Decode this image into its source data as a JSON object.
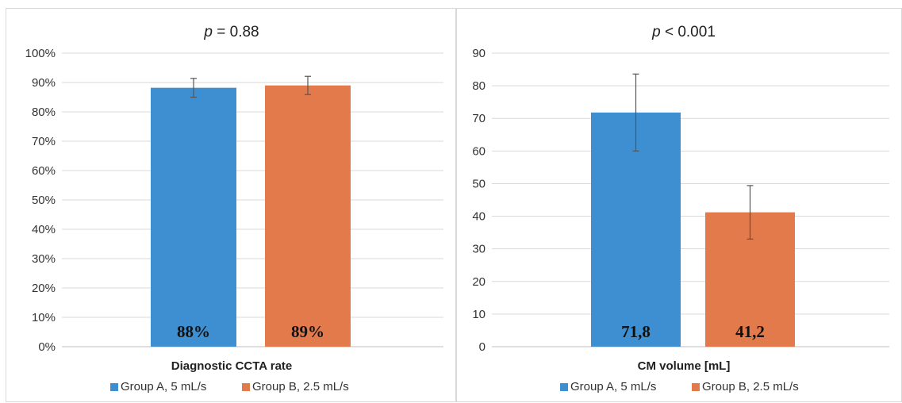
{
  "chart_data": [
    {
      "type": "bar",
      "title_prefix": "p",
      "title_suffix": " = 0.88",
      "xlabel": "Diagnostic CCTA rate",
      "ylim": [
        0,
        100
      ],
      "yticks": [
        "0%",
        "10%",
        "20%",
        "30%",
        "40%",
        "50%",
        "60%",
        "70%",
        "80%",
        "90%",
        "100%"
      ],
      "series": [
        {
          "name": "Group A, 5 mL/s",
          "color": "#3d8fd1",
          "value": 88.2,
          "error": 3.2,
          "label": "88%"
        },
        {
          "name": "Group B, 2.5 mL/s",
          "color": "#e37a4c",
          "value": 89.0,
          "error": 3.1,
          "label": "89%"
        }
      ],
      "grid": true,
      "legend": "bottom"
    },
    {
      "type": "bar",
      "title_prefix": "p",
      "title_suffix": " < 0.001",
      "xlabel": "CM volume [mL]",
      "ylim": [
        0,
        90
      ],
      "yticks": [
        "0",
        "10",
        "20",
        "30",
        "40",
        "50",
        "60",
        "70",
        "80",
        "90"
      ],
      "series": [
        {
          "name": "Group A, 5 mL/s",
          "color": "#3d8fd1",
          "value": 71.8,
          "error": 11.8,
          "label": "71,8"
        },
        {
          "name": "Group B, 2.5 mL/s",
          "color": "#e37a4c",
          "value": 41.2,
          "error": 8.2,
          "label": "41,2"
        }
      ],
      "grid": true,
      "legend": "bottom"
    }
  ]
}
